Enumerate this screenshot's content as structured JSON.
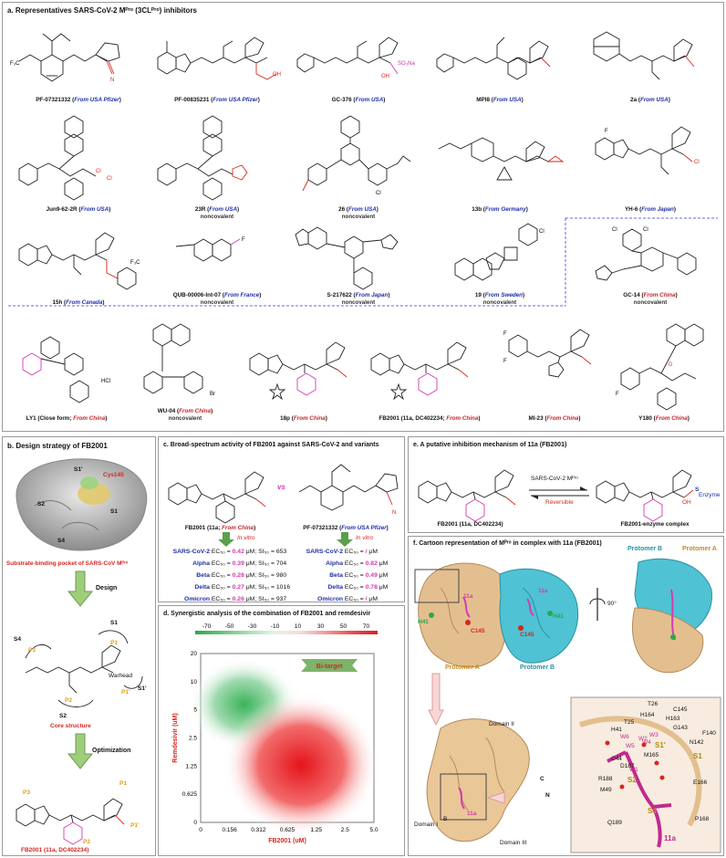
{
  "panel_a": {
    "title": "a. Representatives SARS-CoV-2 Mᴾʳᵒ (3CLᴾʳᵒ) inhibitors",
    "row1": [
      {
        "name": "PF-07321332",
        "origin": "From USA Pfizer",
        "country": "usa",
        "sub": ""
      },
      {
        "name": "PF-00835231",
        "origin": "From USA Pfizer",
        "country": "usa",
        "sub": ""
      },
      {
        "name": "GC-376",
        "origin": "From USA",
        "country": "usa",
        "sub": ""
      },
      {
        "name": "MPI8",
        "origin": "From USA",
        "country": "usa",
        "sub": ""
      },
      {
        "name": "2a",
        "origin": "From USA",
        "country": "usa",
        "sub": ""
      }
    ],
    "row2": [
      {
        "name": "Jun9-62-2R",
        "origin": "From USA",
        "country": "usa",
        "sub": ""
      },
      {
        "name": "23R",
        "origin": "From USA",
        "country": "usa",
        "sub": "noncovalent"
      },
      {
        "name": "26",
        "origin": "From USA",
        "country": "usa",
        "sub": "noncovalent"
      },
      {
        "name": "13b",
        "origin": "From Germany",
        "country": "usa",
        "sub": ""
      },
      {
        "name": "YH-6",
        "origin": "From Japan",
        "country": "usa",
        "sub": ""
      }
    ],
    "row3": [
      {
        "name": "15h",
        "origin": "From Canada",
        "country": "usa",
        "sub": ""
      },
      {
        "name": "QUB-00006-Int-07",
        "origin": "From France",
        "country": "usa",
        "sub": "noncovalent"
      },
      {
        "name": "S-217622",
        "origin": "From Japan",
        "country": "usa",
        "sub": "noncovalent"
      },
      {
        "name": "19",
        "origin": "From Sweden",
        "country": "usa",
        "sub": "noncovalent"
      },
      {
        "name": "GC-14",
        "origin": "From China",
        "country": "cn",
        "sub": "noncovalent"
      }
    ],
    "row4": [
      {
        "name": "LY1 (Close form; ",
        "origin": "From China",
        "country": "cn",
        "sub": ""
      },
      {
        "name": "WU-04",
        "origin": "From China",
        "country": "cn",
        "sub": "noncovalent"
      },
      {
        "name": "18p",
        "origin": "From China",
        "country": "cn",
        "sub": ""
      },
      {
        "name": "FB2001 (11a, DC402234; ",
        "origin": "From China",
        "country": "cn",
        "sub": ""
      },
      {
        "name": "MI-23",
        "origin": "From China",
        "country": "cn",
        "sub": ""
      },
      {
        "name": "Y180",
        "origin": "From China",
        "country": "cn",
        "sub": ""
      }
    ],
    "atom_labels": {
      "f3c": "F₃C",
      "cn": "N",
      "cl": "Cl",
      "oh": "OH",
      "so3na": "SO₃Na",
      "hcl": "HCl",
      "f": "F",
      "br": "Br",
      "o": "O",
      "h": "H",
      "d": "D"
    }
  },
  "panel_b": {
    "title": "b. Design strategy of FB2001",
    "pocket_labels": [
      "S1'",
      "Cys145",
      "S2",
      "S1",
      "S4"
    ],
    "pocket_caption": "Substrate-binding pocket of SARS-CoV Mᴾʳᵒ",
    "step1": "Design",
    "core_labels": [
      "S4",
      "P3",
      "S1",
      "P1",
      "P2",
      "P1'",
      "S2",
      "S1'",
      "Warhead"
    ],
    "core_caption": "Core structure",
    "step2": "Optimization",
    "final_labels": [
      "P3",
      "P1",
      "P1'",
      "P2"
    ],
    "final_caption": "FB2001 (11a, DC402234)"
  },
  "panel_c": {
    "title": "c. Broad-spectrum activity of FB2001 against SARS-CoV-2 and variants",
    "vs": "vs",
    "left_caption": "FB2001 (11a; ",
    "left_origin": "From China",
    "right_caption": "PF-07321332 (",
    "right_origin": "From USA Pfizer",
    "invitro": "In vitro",
    "rows_left": [
      {
        "variant": "SARS-CoV-2",
        "ec50": "0.42",
        "si50": "653"
      },
      {
        "variant": "Alpha",
        "ec50": "0.39",
        "si50": "704"
      },
      {
        "variant": "Beta",
        "ec50": "0.28",
        "si50": "980"
      },
      {
        "variant": "Delta",
        "ec50": "0.27",
        "si50": "1016"
      },
      {
        "variant": "Omicron",
        "ec50": "0.26",
        "si50": "937"
      }
    ],
    "rows_right": [
      {
        "variant": "SARS-CoV-2",
        "ec50": "/"
      },
      {
        "variant": "Alpha",
        "ec50": "0.82"
      },
      {
        "variant": "Beta",
        "ec50": "0.49"
      },
      {
        "variant": "Delta",
        "ec50": "0.78"
      },
      {
        "variant": "Omicron",
        "ec50": "/"
      }
    ],
    "ec_label": "EC₅₀ =",
    "si_label": "SI₅₀ =",
    "unit": "μM"
  },
  "panel_d": {
    "title": "d. Synergistic analysis of the combination of FB2001 and remdesivir",
    "colorbar_ticks": [
      "-70",
      "-50",
      "-30",
      "-10",
      "10",
      "30",
      "50",
      "70"
    ],
    "bi_target": "Bi-target",
    "xlabel": "FB2001 (uM)",
    "ylabel": "Remdesivir (uM)",
    "xticks": [
      "0",
      "0.156",
      "0.312",
      "0.625",
      "1.25",
      "2.5",
      "5.0"
    ],
    "yticks": [
      "0",
      "0.625",
      "1.25",
      "2.5",
      "5",
      "10",
      "20"
    ]
  },
  "panel_e": {
    "title": "e. A putative inhibition mechanism of 11a (FB2001)",
    "arrow_top": "SARS-CoV-2 Mᴾʳᵒ",
    "arrow_bottom": "Reversible",
    "left_caption": "FB2001 (11a, DC402234)",
    "right_caption": "FB2001-enzyme complex",
    "enzyme": "Enzyme",
    "s_label": "S",
    "oh_label": "OH"
  },
  "panel_f": {
    "title": "f. Cartoon representation of Mᴾʳᵒ in complex with 11a (FB2001)",
    "protomer_a": "Protomer A",
    "protomer_b": "Protomer B",
    "rotate": "90°",
    "labels_top": [
      "11a",
      "11a",
      "H41",
      "H41",
      "C145",
      "C145"
    ],
    "domains": [
      "Domain II",
      "Domain I",
      "Domain III",
      "C",
      "N",
      "B",
      "11a"
    ],
    "zoom_labels": [
      "T26",
      "C145",
      "H164",
      "H163",
      "T25",
      "G143",
      "H41",
      "F140",
      "N142",
      "C44",
      "W5",
      "W4",
      "S1'",
      "M165",
      "D187",
      "S1",
      "R188",
      "S2",
      "E166",
      "M49",
      "Q189",
      "S4",
      "P168",
      "11a",
      "W1",
      "W2",
      "W3",
      "W6"
    ]
  }
}
